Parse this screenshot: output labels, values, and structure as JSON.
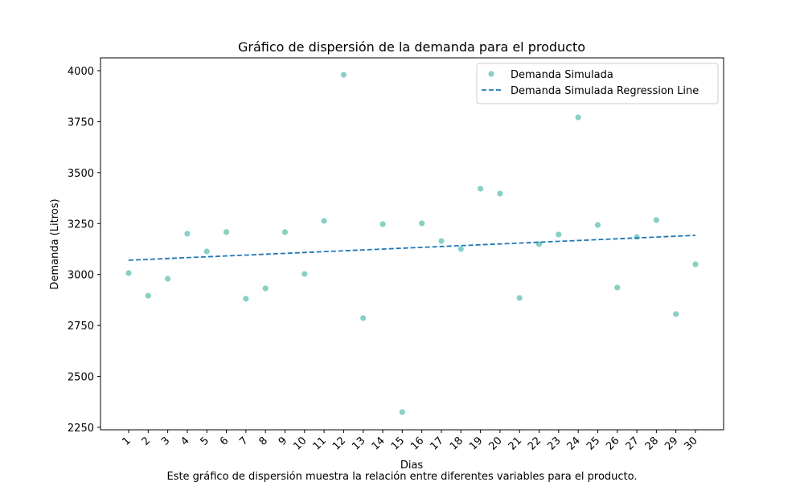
{
  "chart_data": {
    "type": "scatter",
    "title": "Gráfico de dispersión de la demanda para el producto",
    "xlabel": "Dias",
    "ylabel": "Demanda (Litros)",
    "caption": "Este gráfico de dispersión muestra la relación entre diferentes variables para el producto.",
    "xlim": [
      -0.44,
      31.44
    ],
    "xticks": [
      1,
      2,
      3,
      4,
      5,
      6,
      7,
      8,
      9,
      10,
      11,
      12,
      13,
      14,
      15,
      16,
      17,
      18,
      19,
      20,
      21,
      22,
      23,
      24,
      25,
      26,
      27,
      28,
      29,
      30
    ],
    "ylim": [
      2238,
      4063
    ],
    "yticks": [
      2250,
      2500,
      2750,
      3000,
      3250,
      3500,
      3750,
      4000
    ],
    "legend": "upper right",
    "series": [
      {
        "name": "Demanda Simulada",
        "color": "#88d0c6",
        "mode": "markers",
        "x": [
          1,
          2,
          3,
          4,
          5,
          6,
          7,
          8,
          9,
          10,
          11,
          12,
          13,
          14,
          15,
          16,
          17,
          18,
          19,
          20,
          21,
          22,
          23,
          24,
          25,
          26,
          27,
          28,
          29,
          30
        ],
        "values": [
          3007,
          2896,
          2979,
          3200,
          3113,
          3208,
          2881,
          2932,
          3208,
          3003,
          3263,
          3980,
          2786,
          3247,
          2325,
          3251,
          3164,
          3125,
          3421,
          3397,
          2885,
          3149,
          3196,
          3771,
          3243,
          2936,
          3184,
          3267,
          2806,
          3050
        ]
      },
      {
        "name": "Demanda Simulada Regression Line",
        "color": "#1f77b4",
        "mode": "dashed-line",
        "x": [
          1,
          30
        ],
        "values": [
          3070,
          3192
        ]
      }
    ]
  }
}
